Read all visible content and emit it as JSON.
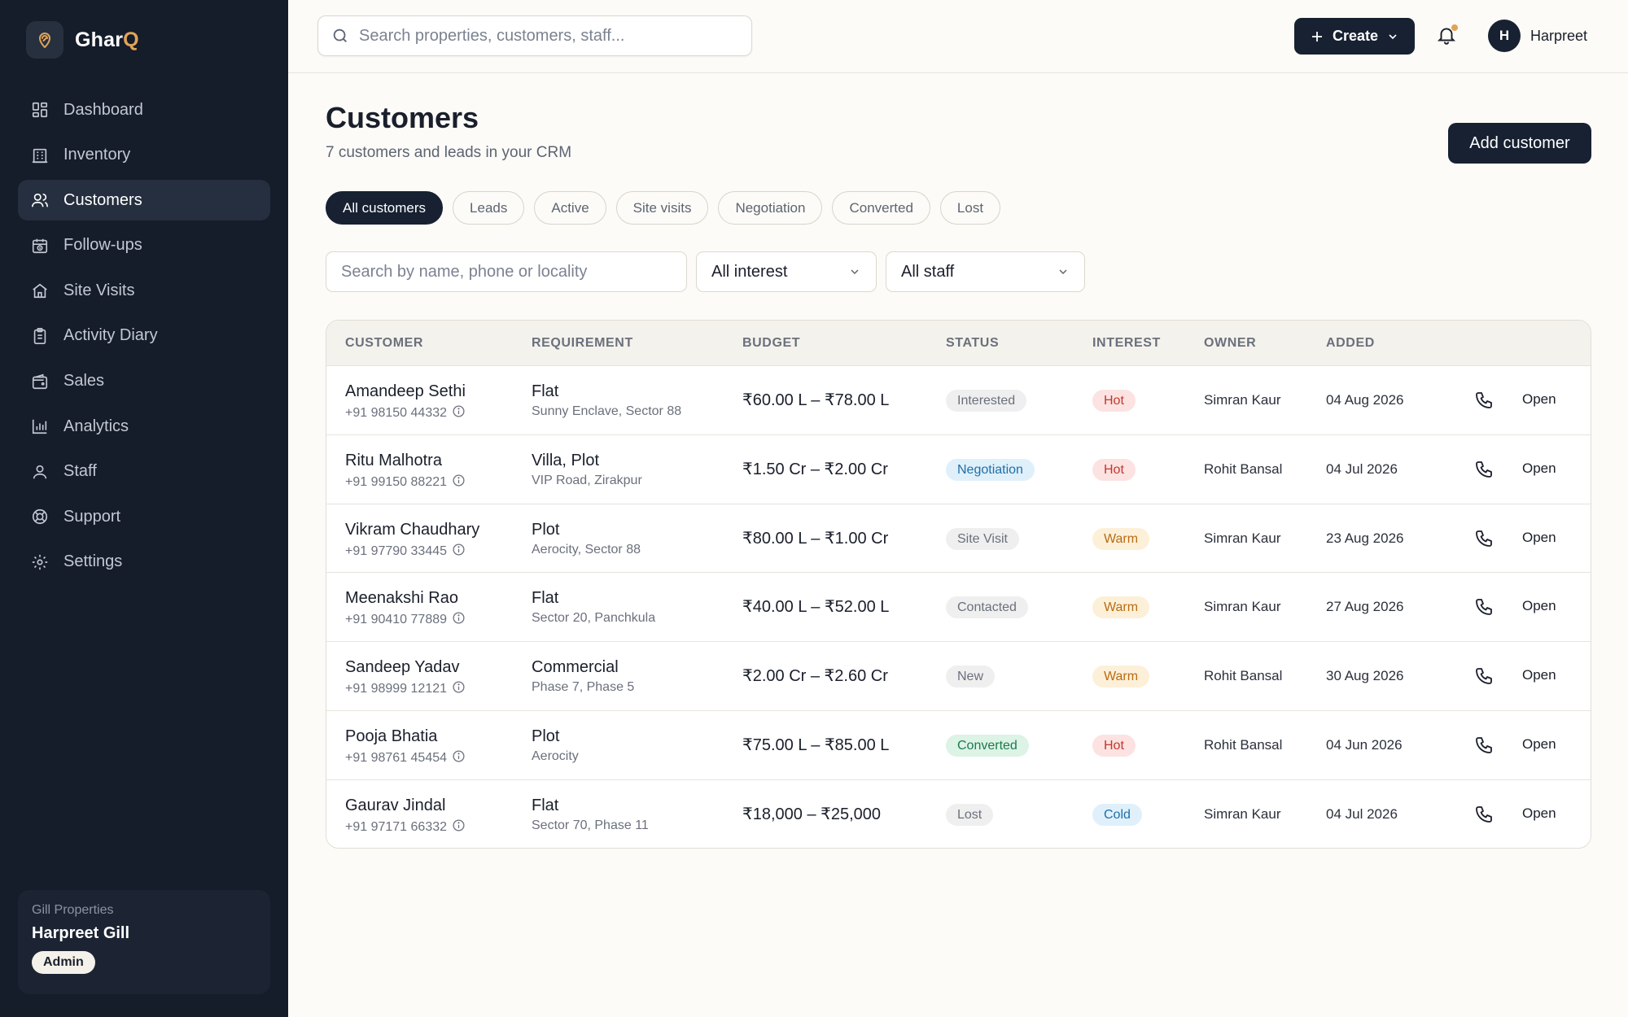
{
  "brand": {
    "name_main": "Ghar",
    "name_accent": "Q",
    "accent_color": "#e0a458"
  },
  "sidebar": {
    "items": [
      {
        "label": "Dashboard",
        "icon": "grid-icon"
      },
      {
        "label": "Inventory",
        "icon": "building-icon"
      },
      {
        "label": "Customers",
        "icon": "users-icon",
        "active": true
      },
      {
        "label": "Follow-ups",
        "icon": "calendar-clock-icon"
      },
      {
        "label": "Site Visits",
        "icon": "home-icon"
      },
      {
        "label": "Activity Diary",
        "icon": "clipboard-icon"
      },
      {
        "label": "Sales",
        "icon": "wallet-icon"
      },
      {
        "label": "Analytics",
        "icon": "bar-chart-icon"
      },
      {
        "label": "Staff",
        "icon": "user-icon"
      },
      {
        "label": "Support",
        "icon": "lifebuoy-icon"
      },
      {
        "label": "Settings",
        "icon": "gear-icon"
      }
    ],
    "account": {
      "org": "Gill Properties",
      "name": "Harpreet Gill",
      "role": "Admin"
    }
  },
  "topbar": {
    "search_placeholder": "Search properties, customers, staff...",
    "create_label": "Create",
    "user_initial": "H",
    "user_name": "Harpreet"
  },
  "page": {
    "title": "Customers",
    "subtitle": "7 customers and leads in your CRM",
    "add_label": "Add customer"
  },
  "tabs": [
    "All customers",
    "Leads",
    "Active",
    "Site visits",
    "Negotiation",
    "Converted",
    "Lost"
  ],
  "filters": {
    "search_placeholder": "Search by name, phone or locality",
    "interest_value": "All interest",
    "staff_value": "All staff"
  },
  "table": {
    "headers": [
      "CUSTOMER",
      "REQUIREMENT",
      "BUDGET",
      "STATUS",
      "INTEREST",
      "OWNER",
      "ADDED"
    ],
    "open_label": "Open",
    "rows": [
      {
        "name": "Amandeep Sethi",
        "phone": "+91 98150 44332",
        "req_type": "Flat",
        "req_loc": "Sunny Enclave, Sector 88",
        "budget": "₹60.00 L – ₹78.00 L",
        "status": "Interested",
        "interest": "Hot",
        "owner": "Simran Kaur",
        "added": "04 Aug 2026"
      },
      {
        "name": "Ritu Malhotra",
        "phone": "+91 99150 88221",
        "req_type": "Villa, Plot",
        "req_loc": "VIP Road, Zirakpur",
        "budget": "₹1.50 Cr – ₹2.00 Cr",
        "status": "Negotiation",
        "interest": "Hot",
        "owner": "Rohit Bansal",
        "added": "04 Jul 2026"
      },
      {
        "name": "Vikram Chaudhary",
        "phone": "+91 97790 33445",
        "req_type": "Plot",
        "req_loc": "Aerocity, Sector 88",
        "budget": "₹80.00 L – ₹1.00 Cr",
        "status": "Site Visit",
        "interest": "Warm",
        "owner": "Simran Kaur",
        "added": "23 Aug 2026"
      },
      {
        "name": "Meenakshi Rao",
        "phone": "+91 90410 77889",
        "req_type": "Flat",
        "req_loc": "Sector 20, Panchkula",
        "budget": "₹40.00 L – ₹52.00 L",
        "status": "Contacted",
        "interest": "Warm",
        "owner": "Simran Kaur",
        "added": "27 Aug 2026"
      },
      {
        "name": "Sandeep Yadav",
        "phone": "+91 98999 12121",
        "req_type": "Commercial",
        "req_loc": "Phase 7, Phase 5",
        "budget": "₹2.00 Cr – ₹2.60 Cr",
        "status": "New",
        "interest": "Warm",
        "owner": "Rohit Bansal",
        "added": "30 Aug 2026"
      },
      {
        "name": "Pooja Bhatia",
        "phone": "+91 98761 45454",
        "req_type": "Plot",
        "req_loc": "Aerocity",
        "budget": "₹75.00 L – ₹85.00 L",
        "status": "Converted",
        "interest": "Hot",
        "owner": "Rohit Bansal",
        "added": "04 Jun 2026"
      },
      {
        "name": "Gaurav Jindal",
        "phone": "+91 97171 66332",
        "req_type": "Flat",
        "req_loc": "Sector 70, Phase 11",
        "budget": "₹18,000 – ₹25,000",
        "status": "Lost",
        "interest": "Cold",
        "owner": "Simran Kaur",
        "added": "04 Jul 2026"
      }
    ]
  },
  "colors": {
    "sidebar_bg": "#151c2a",
    "primary_dark": "#172132",
    "status": {
      "Interested": {
        "bg": "#efefef",
        "fg": "#6a707c"
      },
      "Negotiation": {
        "bg": "#dff0fb",
        "fg": "#1f6fa6"
      },
      "Site Visit": {
        "bg": "#efefef",
        "fg": "#6a707c"
      },
      "Contacted": {
        "bg": "#efefef",
        "fg": "#6a707c"
      },
      "New": {
        "bg": "#efefef",
        "fg": "#6a707c"
      },
      "Converted": {
        "bg": "#dcf3e6",
        "fg": "#1e7a4a"
      },
      "Lost": {
        "bg": "#efefef",
        "fg": "#6a707c"
      }
    },
    "interest": {
      "Hot": {
        "bg": "#fde2e2",
        "fg": "#c0392b"
      },
      "Warm": {
        "bg": "#fdf0d9",
        "fg": "#b86b12"
      },
      "Cold": {
        "bg": "#dff0fb",
        "fg": "#1f6fa6"
      }
    }
  }
}
